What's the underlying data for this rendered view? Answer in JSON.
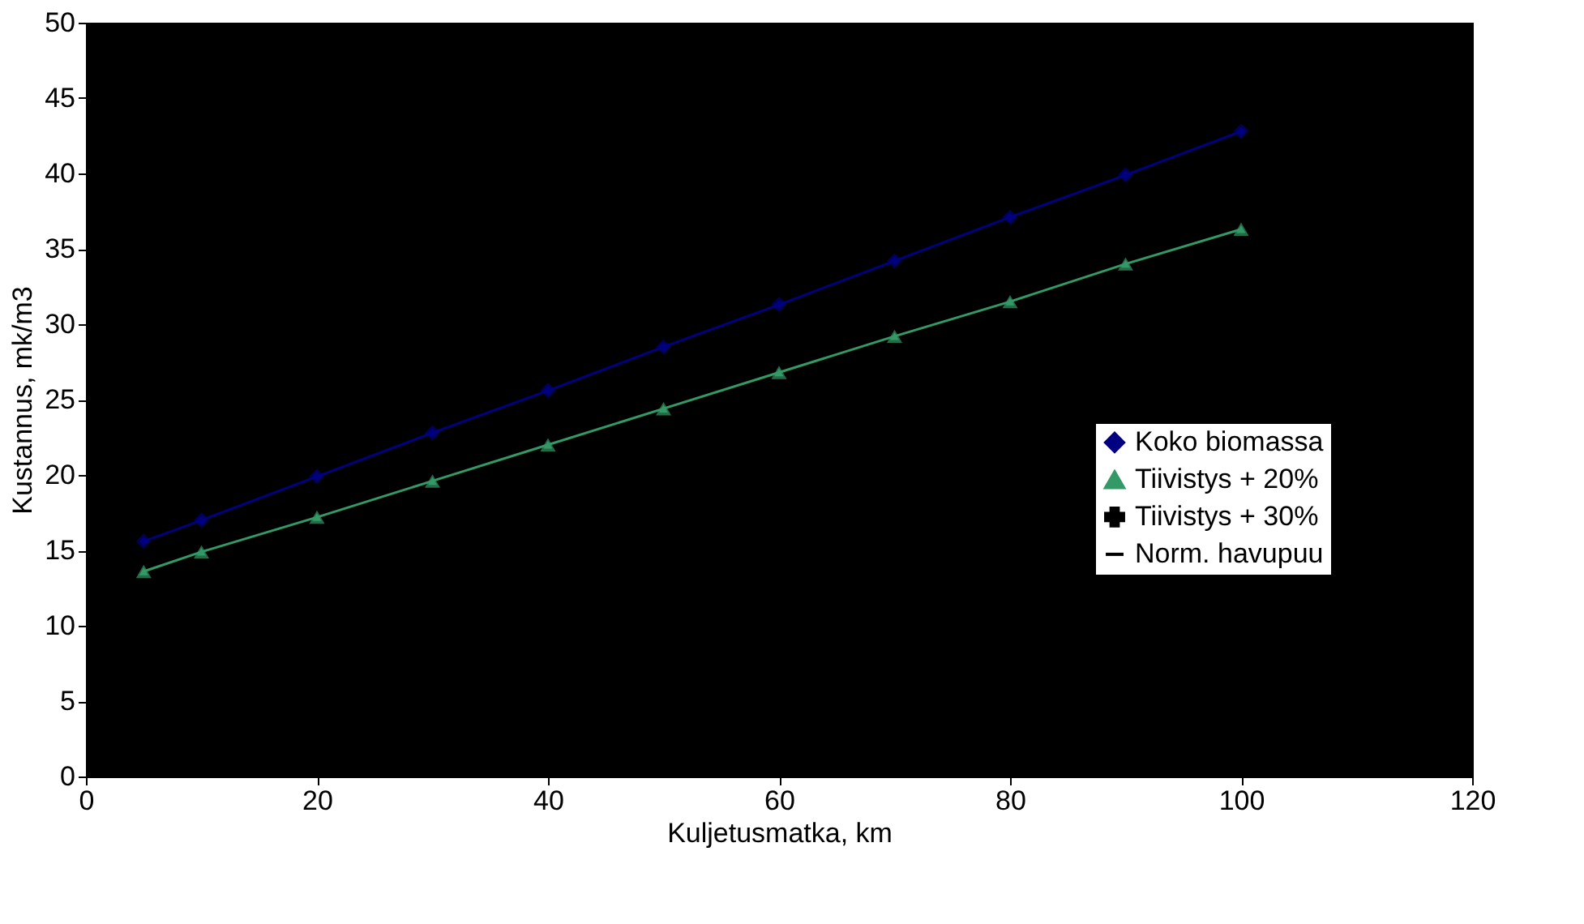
{
  "chart_data": {
    "type": "line",
    "xlabel": "Kuljetusmatka, km",
    "ylabel": "Kustannus, mk/m3",
    "x": [
      5,
      10,
      20,
      30,
      40,
      50,
      60,
      70,
      80,
      90,
      100
    ],
    "xlim": [
      0,
      120
    ],
    "xticks": [
      0,
      20,
      40,
      60,
      80,
      100,
      120
    ],
    "ylim": [
      0,
      50
    ],
    "yticks": [
      0,
      5,
      10,
      15,
      20,
      25,
      30,
      35,
      40,
      45,
      50
    ],
    "grid": false,
    "legend": "right",
    "series": [
      {
        "name": "Koko biomassa",
        "color": "#000080",
        "marker": "diamond",
        "values": [
          15.6,
          17.0,
          19.9,
          22.8,
          25.6,
          28.5,
          31.3,
          34.2,
          37.1,
          39.9,
          42.8
        ]
      },
      {
        "name": "Tiivistys + 20%",
        "color": "#339966",
        "marker": "triangle",
        "values": [
          13.6,
          14.9,
          17.2,
          19.6,
          22.0,
          24.4,
          26.8,
          29.2,
          31.5,
          34.0,
          36.3
        ]
      },
      {
        "name": "Tiivistys + 30%",
        "color": "#000000",
        "marker": "cross",
        "values": [
          null,
          null,
          null,
          null,
          null,
          null,
          null,
          null,
          null,
          null,
          null
        ]
      },
      {
        "name": "Norm. havupuu",
        "color": "#000000",
        "marker": "none",
        "values": [
          null,
          null,
          null,
          null,
          null,
          null,
          null,
          null,
          null,
          null,
          null
        ]
      }
    ]
  }
}
